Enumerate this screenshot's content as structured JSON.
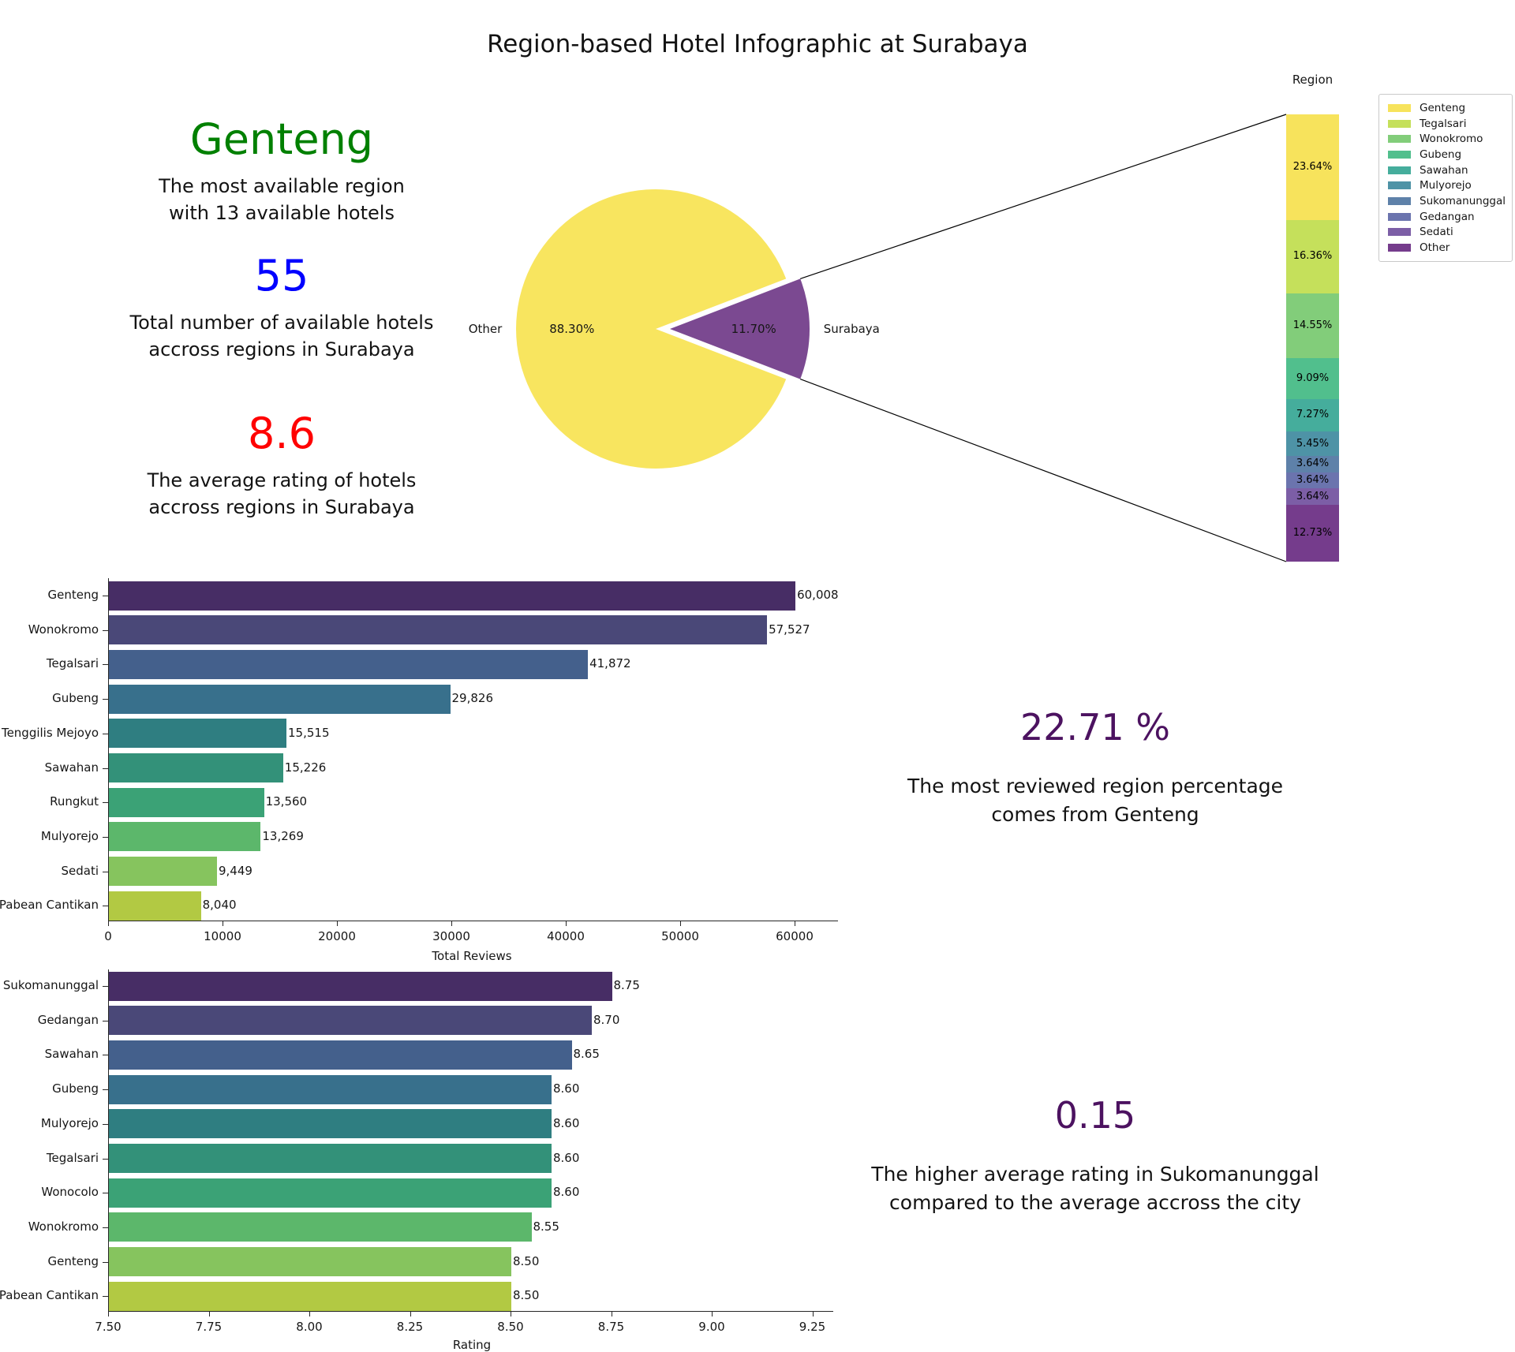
{
  "title": "Region-based Hotel Infographic at Surabaya",
  "stats": [
    {
      "name": "most-available-region",
      "value": "Genteng",
      "color": "#008000",
      "desc": "The most available region\nwith 13 available hotels"
    },
    {
      "name": "total-available-hotels",
      "value": "55",
      "color": "#0000ff",
      "desc": "Total number of available hotels\naccross regions in Surabaya"
    },
    {
      "name": "average-rating",
      "value": "8.6",
      "color": "#ff0000",
      "desc": "The average rating of hotels\naccross regions in Surabaya"
    },
    {
      "name": "most-reviewed-share",
      "value": "22.71 %",
      "color": "#4c1260",
      "desc": "The most reviewed region percentage\ncomes from Genteng"
    },
    {
      "name": "rating-difference",
      "value": "0.15",
      "color": "#4c1260",
      "desc": "The higher average rating in Sukomanunggal\ncompared to the average accross the city"
    }
  ],
  "chart_data": [
    {
      "type": "pie",
      "name": "city-share-pie",
      "slices": [
        {
          "label": "Other",
          "value": 88.3,
          "pct_label": "88.30%",
          "color": "#f8e55f"
        },
        {
          "label": "Surabaya",
          "value": 11.7,
          "pct_label": "11.70%",
          "color": "#7b4991",
          "exploded": true
        }
      ],
      "legend_position": "none"
    },
    {
      "type": "bar",
      "name": "region-share-stacked-bar",
      "title": "Region",
      "orientation": "vertical-stacked",
      "categories": [
        "Genteng",
        "Tegalsari",
        "Wonokromo",
        "Gubeng",
        "Sawahan",
        "Mulyorejo",
        "Sukomanunggal",
        "Gedangan",
        "Sedati",
        "Other"
      ],
      "values": [
        23.64,
        16.36,
        14.55,
        9.09,
        7.27,
        5.45,
        3.64,
        3.64,
        3.64,
        12.73
      ],
      "labels": [
        "23.64%",
        "16.36%",
        "14.55%",
        "9.09%",
        "7.27%",
        "5.45%",
        "3.64%",
        "3.64%",
        "3.64%",
        "12.73%"
      ],
      "colors": [
        "#f7e35c",
        "#c5e05b",
        "#82cd7a",
        "#51bf8d",
        "#45ad9c",
        "#4e93a6",
        "#5e81a9",
        "#6b74ae",
        "#7c5ea6",
        "#753c8c"
      ],
      "legend_position": "right"
    },
    {
      "type": "bar",
      "name": "total-reviews-by-region",
      "orientation": "horizontal",
      "categories": [
        "Genteng",
        "Wonokromo",
        "Tegalsari",
        "Gubeng",
        "Tenggilis Mejoyo",
        "Sawahan",
        "Rungkut",
        "Mulyorejo",
        "Sedati",
        "Pabean Cantikan"
      ],
      "values": [
        60008,
        57527,
        41872,
        29826,
        15515,
        15226,
        13560,
        13269,
        9449,
        8040
      ],
      "labels": [
        "60,008",
        "57,527",
        "41,872",
        "29,826",
        "15,515",
        "15,226",
        "13,560",
        "13,269",
        "9,449",
        "8,040"
      ],
      "colors": [
        "#472d65",
        "#4a4878",
        "#44608c",
        "#38708c",
        "#2f7e81",
        "#339179",
        "#3ba276",
        "#5cb76b",
        "#86c45e",
        "#b2c943"
      ],
      "xlabel": "Total Reviews",
      "xlim": [
        0,
        63800
      ],
      "xticks": [
        0,
        10000,
        20000,
        30000,
        40000,
        50000,
        60000
      ],
      "xtick_labels": [
        "0",
        "10000",
        "20000",
        "30000",
        "40000",
        "50000",
        "60000"
      ],
      "grid": false
    },
    {
      "type": "bar",
      "name": "rating-by-region",
      "orientation": "horizontal",
      "categories": [
        "Sukomanunggal",
        "Gedangan",
        "Sawahan",
        "Gubeng",
        "Mulyorejo",
        "Tegalsari",
        "Wonocolo",
        "Wonokromo",
        "Genteng",
        "Pabean Cantikan"
      ],
      "values": [
        8.75,
        8.7,
        8.65,
        8.6,
        8.6,
        8.6,
        8.6,
        8.55,
        8.5,
        8.5
      ],
      "labels": [
        "8.75",
        "8.70",
        "8.65",
        "8.60",
        "8.60",
        "8.60",
        "8.60",
        "8.55",
        "8.50",
        "8.50"
      ],
      "colors": [
        "#472d65",
        "#4a4878",
        "#44608c",
        "#38708c",
        "#2f7e81",
        "#339179",
        "#3ba276",
        "#5cb76b",
        "#86c45e",
        "#b2c943"
      ],
      "xlabel": "Rating",
      "xlim": [
        7.5,
        9.3
      ],
      "xticks": [
        7.5,
        7.75,
        8.0,
        8.25,
        8.5,
        8.75,
        9.0,
        9.25
      ],
      "xtick_labels": [
        "7.50",
        "7.75",
        "8.00",
        "8.25",
        "8.50",
        "8.75",
        "9.00",
        "9.25"
      ],
      "grid": false
    }
  ]
}
